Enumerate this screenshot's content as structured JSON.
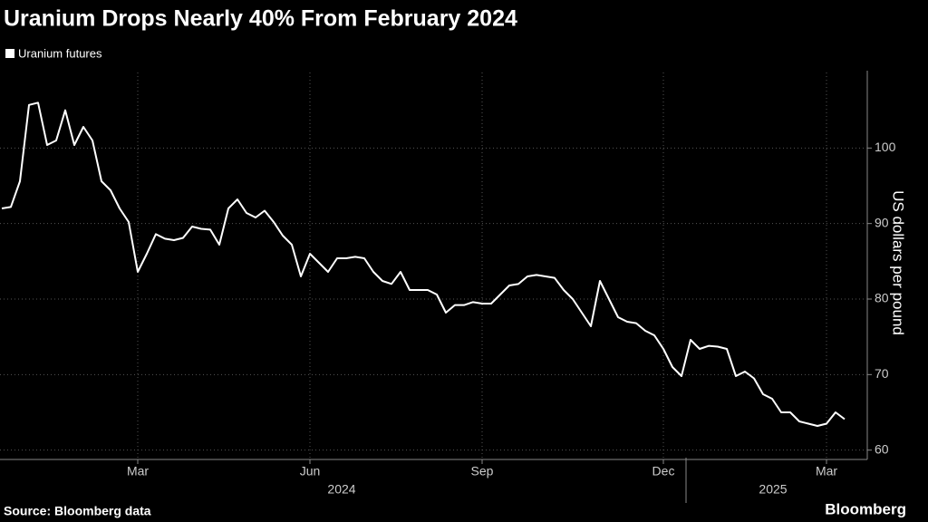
{
  "chart_data": {
    "type": "line",
    "title": "Uranium Drops Nearly 40% From February 2024",
    "source": "Source: Bloomberg data",
    "brand": "Bloomberg",
    "y_label": "US dollars per pound",
    "year_labels": [
      "2024",
      "2025"
    ],
    "categories": [
      null,
      null,
      null,
      null,
      null,
      null,
      null,
      null,
      null,
      null,
      null,
      null,
      null,
      null,
      null,
      "Mar",
      null,
      null,
      null,
      null,
      null,
      null,
      null,
      null,
      null,
      null,
      null,
      null,
      null,
      null,
      null,
      null,
      null,
      null,
      "Jun",
      null,
      null,
      null,
      null,
      null,
      null,
      null,
      null,
      null,
      null,
      null,
      null,
      null,
      null,
      null,
      null,
      null,
      null,
      "Sep",
      null,
      null,
      null,
      null,
      null,
      null,
      null,
      null,
      null,
      null,
      null,
      null,
      null,
      null,
      null,
      null,
      null,
      null,
      null,
      "Dec",
      null,
      null,
      null,
      null,
      null,
      null,
      null,
      null,
      null,
      null,
      null,
      null,
      null,
      null,
      null,
      null,
      null,
      "Mar",
      null,
      null
    ],
    "series": [
      {
        "name": "Uranium futures",
        "color": "#ffffff",
        "values": [
          92,
          92.2,
          95.6,
          105.7,
          106,
          100.4,
          101,
          105,
          100.4,
          102.8,
          101,
          95.6,
          94.4,
          92,
          90.2,
          83.6,
          86,
          88.6,
          88,
          87.8,
          88.1,
          89.6,
          89.3,
          89.2,
          87.2,
          92,
          93.2,
          91.4,
          90.8,
          91.7,
          90.2,
          88.4,
          87.2,
          83,
          86,
          84.8,
          83.6,
          85.4,
          85.4,
          85.6,
          85.4,
          83.6,
          82.4,
          82,
          83.6,
          81.2,
          81.2,
          81.2,
          80.6,
          78.2,
          79.2,
          79.2,
          79.6,
          79.4,
          79.4,
          80.6,
          81.8,
          82,
          83,
          83.2,
          83,
          82.8,
          81.2,
          80,
          78.2,
          76.4,
          82.4,
          80,
          77.6,
          77,
          76.8,
          75.8,
          75.2,
          73.4,
          71,
          69.8,
          74.6,
          73.4,
          73.8,
          73.7,
          73.4,
          69.8,
          70.4,
          69.5,
          67.4,
          66.8,
          65,
          65,
          63.8,
          63.5,
          63.2,
          63.5,
          65,
          64.1
        ]
      }
    ],
    "ylim": [
      59,
      110
    ],
    "yticks": [
      60,
      70,
      80,
      90,
      100
    ],
    "grid": true,
    "legend": "top-left"
  }
}
